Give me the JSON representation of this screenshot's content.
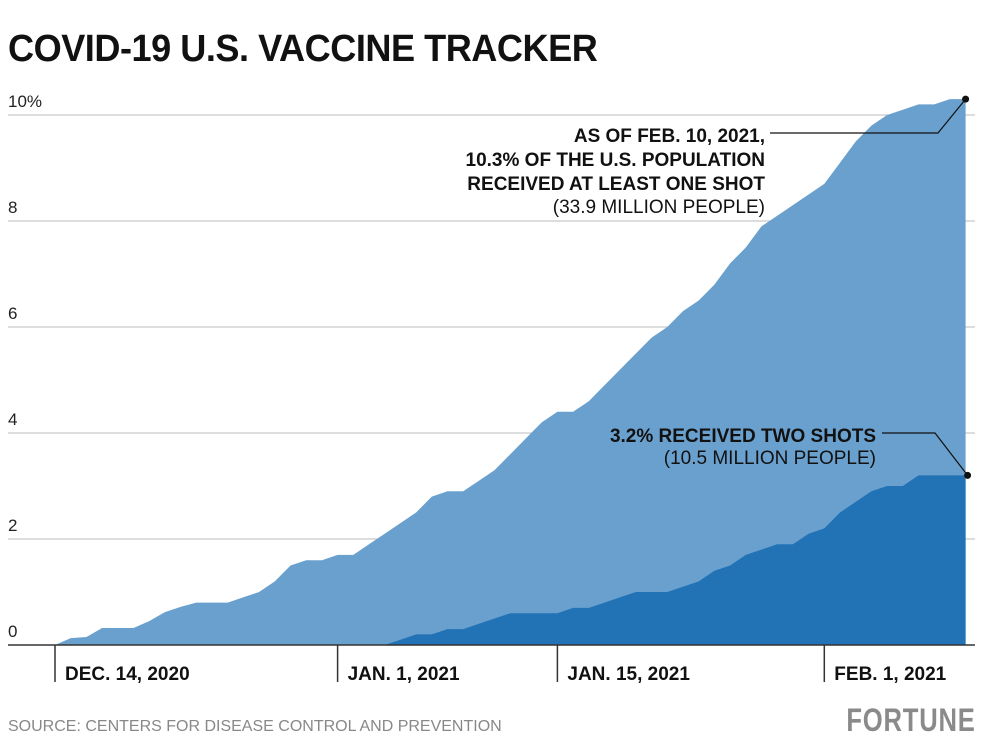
{
  "title": "COVID-19 U.S. VACCINE TRACKER",
  "source": "SOURCE: CENTERS FOR DISEASE CONTROL AND PREVENTION",
  "logo": "FORTUNE",
  "colors": {
    "at_least_one": "#6aa0cd",
    "two_shots": "#2272b6"
  },
  "chart_data": {
    "type": "area",
    "ylim": [
      0,
      10.3
    ],
    "y_ticks": [
      "0",
      "2",
      "4",
      "6",
      "8",
      "10%"
    ],
    "y_tick_values": [
      0,
      2,
      4,
      6,
      8,
      10
    ],
    "x_ticks": [
      {
        "label": "DEC. 14, 2020",
        "date": "Dec 14"
      },
      {
        "label": "JAN. 1, 2021",
        "date": "Jan 1"
      },
      {
        "label": "JAN. 15, 2021",
        "date": "Jan 15"
      },
      {
        "label": "FEB. 1, 2021",
        "date": "Feb 1"
      }
    ],
    "grid": true,
    "x": [
      "Dec 14",
      "Dec 15",
      "Dec 16",
      "Dec 17",
      "Dec 18",
      "Dec 19",
      "Dec 20",
      "Dec 21",
      "Dec 22",
      "Dec 23",
      "Dec 24",
      "Dec 25",
      "Dec 26",
      "Dec 27",
      "Dec 28",
      "Dec 29",
      "Dec 30",
      "Dec 31",
      "Jan 1",
      "Jan 2",
      "Jan 3",
      "Jan 4",
      "Jan 5",
      "Jan 6",
      "Jan 7",
      "Jan 8",
      "Jan 9",
      "Jan 10",
      "Jan 11",
      "Jan 12",
      "Jan 13",
      "Jan 14",
      "Jan 15",
      "Jan 16",
      "Jan 17",
      "Jan 18",
      "Jan 19",
      "Jan 20",
      "Jan 21",
      "Jan 22",
      "Jan 23",
      "Jan 24",
      "Jan 25",
      "Jan 26",
      "Jan 27",
      "Jan 28",
      "Jan 29",
      "Jan 30",
      "Jan 31",
      "Feb 1",
      "Feb 2",
      "Feb 3",
      "Feb 4",
      "Feb 5",
      "Feb 6",
      "Feb 7",
      "Feb 8",
      "Feb 9",
      "Feb 10"
    ],
    "series": [
      {
        "key": "at_least_one",
        "values": [
          0,
          0.13,
          0.15,
          0.32,
          0.32,
          0.32,
          0.45,
          0.62,
          0.72,
          0.8,
          0.8,
          0.8,
          0.9,
          1.0,
          1.2,
          1.5,
          1.6,
          1.6,
          1.7,
          1.7,
          1.9,
          2.1,
          2.3,
          2.5,
          2.8,
          2.9,
          2.9,
          3.1,
          3.3,
          3.6,
          3.9,
          4.2,
          4.4,
          4.4,
          4.6,
          4.9,
          5.2,
          5.5,
          5.8,
          6.0,
          6.3,
          6.5,
          6.8,
          7.2,
          7.5,
          7.9,
          8.1,
          8.3,
          8.5,
          8.7,
          9.1,
          9.5,
          9.8,
          10.0,
          10.1,
          10.2,
          10.2,
          10.3,
          10.3
        ]
      },
      {
        "key": "two_shots",
        "values": [
          0,
          0,
          0,
          0,
          0,
          0,
          0,
          0,
          0,
          0,
          0,
          0,
          0,
          0,
          0,
          0,
          0,
          0,
          0,
          0,
          0,
          0,
          0.1,
          0.2,
          0.2,
          0.3,
          0.3,
          0.4,
          0.5,
          0.6,
          0.6,
          0.6,
          0.6,
          0.7,
          0.7,
          0.8,
          0.9,
          1.0,
          1.0,
          1.0,
          1.1,
          1.2,
          1.4,
          1.5,
          1.7,
          1.8,
          1.9,
          1.9,
          2.1,
          2.2,
          2.5,
          2.7,
          2.9,
          3.0,
          3.0,
          3.2,
          3.2,
          3.2,
          3.2
        ]
      }
    ],
    "annotations": {
      "one_shot": [
        "AS OF FEB. 10, 2021,",
        "10.3% OF THE U.S. POPULATION",
        "RECEIVED AT LEAST ONE SHOT",
        "(33.9 MILLION PEOPLE)"
      ],
      "two_shots": [
        "3.2% RECEIVED TWO SHOTS",
        "(10.5 MILLION PEOPLE)"
      ]
    }
  }
}
